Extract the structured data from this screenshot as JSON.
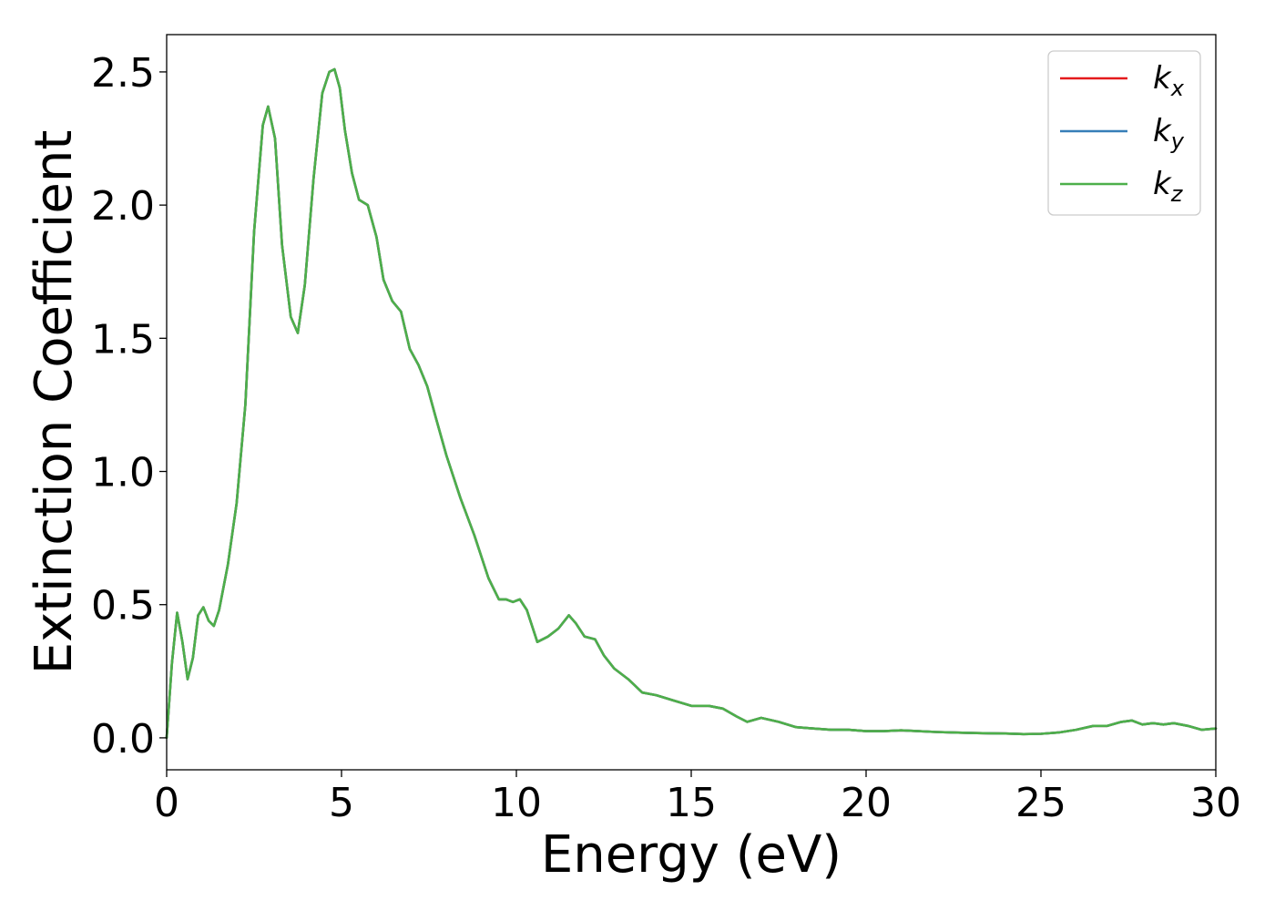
{
  "chart_data": {
    "type": "line",
    "xlabel": "Energy (eV)",
    "ylabel": "Extinction Coefficient",
    "xlim": [
      0,
      30
    ],
    "ylim": [
      -0.12,
      2.64
    ],
    "xticks": [
      0,
      5,
      10,
      15,
      20,
      25,
      30
    ],
    "xtick_labels": [
      "0",
      "5",
      "10",
      "15",
      "20",
      "25",
      "30"
    ],
    "yticks": [
      0.0,
      0.5,
      1.0,
      1.5,
      2.0,
      2.5
    ],
    "ytick_labels": [
      "0.0",
      "0.5",
      "1.0",
      "1.5",
      "2.0",
      "2.5"
    ],
    "grid": false,
    "legend_position": "top-right",
    "series": [
      {
        "name": "k",
        "subscript": "x",
        "color": "#e41a1c"
      },
      {
        "name": "k",
        "subscript": "y",
        "color": "#377eb8"
      },
      {
        "name": "k",
        "subscript": "z",
        "color": "#4daf4a"
      }
    ],
    "x": [
      0,
      0.15,
      0.3,
      0.45,
      0.6,
      0.75,
      0.9,
      1.05,
      1.2,
      1.35,
      1.5,
      1.75,
      2.0,
      2.25,
      2.5,
      2.75,
      2.9,
      3.1,
      3.3,
      3.55,
      3.75,
      3.95,
      4.2,
      4.45,
      4.65,
      4.8,
      4.95,
      5.1,
      5.3,
      5.5,
      5.75,
      6.0,
      6.2,
      6.45,
      6.7,
      6.95,
      7.2,
      7.45,
      7.7,
      8.0,
      8.4,
      8.8,
      9.2,
      9.5,
      9.7,
      9.9,
      10.1,
      10.3,
      10.6,
      10.9,
      11.2,
      11.5,
      11.7,
      11.95,
      12.25,
      12.5,
      12.8,
      13.2,
      13.6,
      14.0,
      14.5,
      15.0,
      15.5,
      15.9,
      16.3,
      16.6,
      17.0,
      17.5,
      18.0,
      18.5,
      19.0,
      19.5,
      20.0,
      20.5,
      21.0,
      21.5,
      22.0,
      22.5,
      23.0,
      23.5,
      24.0,
      24.5,
      25.0,
      25.5,
      26.0,
      26.5,
      26.9,
      27.3,
      27.6,
      27.9,
      28.2,
      28.5,
      28.8,
      29.2,
      29.6,
      30.0
    ],
    "values": [
      0.0,
      0.28,
      0.47,
      0.36,
      0.22,
      0.3,
      0.46,
      0.49,
      0.44,
      0.42,
      0.48,
      0.65,
      0.88,
      1.25,
      1.9,
      2.3,
      2.37,
      2.25,
      1.85,
      1.58,
      1.52,
      1.7,
      2.1,
      2.42,
      2.5,
      2.51,
      2.44,
      2.28,
      2.12,
      2.02,
      2.0,
      1.88,
      1.72,
      1.64,
      1.6,
      1.46,
      1.4,
      1.32,
      1.2,
      1.06,
      0.9,
      0.76,
      0.6,
      0.52,
      0.52,
      0.51,
      0.52,
      0.48,
      0.36,
      0.38,
      0.41,
      0.46,
      0.43,
      0.38,
      0.37,
      0.31,
      0.26,
      0.22,
      0.17,
      0.16,
      0.14,
      0.12,
      0.12,
      0.11,
      0.08,
      0.06,
      0.075,
      0.06,
      0.04,
      0.035,
      0.03,
      0.03,
      0.025,
      0.025,
      0.028,
      0.025,
      0.022,
      0.02,
      0.018,
      0.017,
      0.016,
      0.014,
      0.015,
      0.02,
      0.03,
      0.045,
      0.045,
      0.06,
      0.065,
      0.05,
      0.055,
      0.05,
      0.055,
      0.045,
      0.03,
      0.035
    ]
  }
}
